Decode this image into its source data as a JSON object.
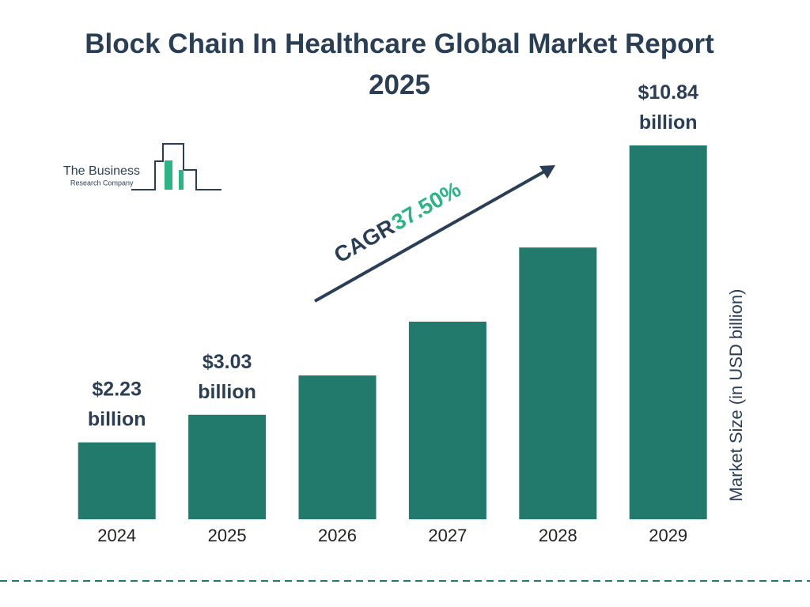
{
  "chart_data": {
    "type": "bar",
    "title": "Block Chain In Healthcare Global Market Report 2025",
    "categories": [
      "2024",
      "2025",
      "2026",
      "2027",
      "2028",
      "2029"
    ],
    "values": [
      2.23,
      3.03,
      4.17,
      5.73,
      7.88,
      10.84
    ],
    "value_labels": [
      "$2.23 billion",
      "$3.03 billion",
      null,
      null,
      null,
      "$10.84 billion"
    ],
    "color": "#217a6b",
    "y_label": "Market Size (in USD billion)",
    "cagr_label": "CAGR",
    "cagr_value": "37.50%",
    "logo": [
      "The Business",
      "Research Company"
    ]
  }
}
